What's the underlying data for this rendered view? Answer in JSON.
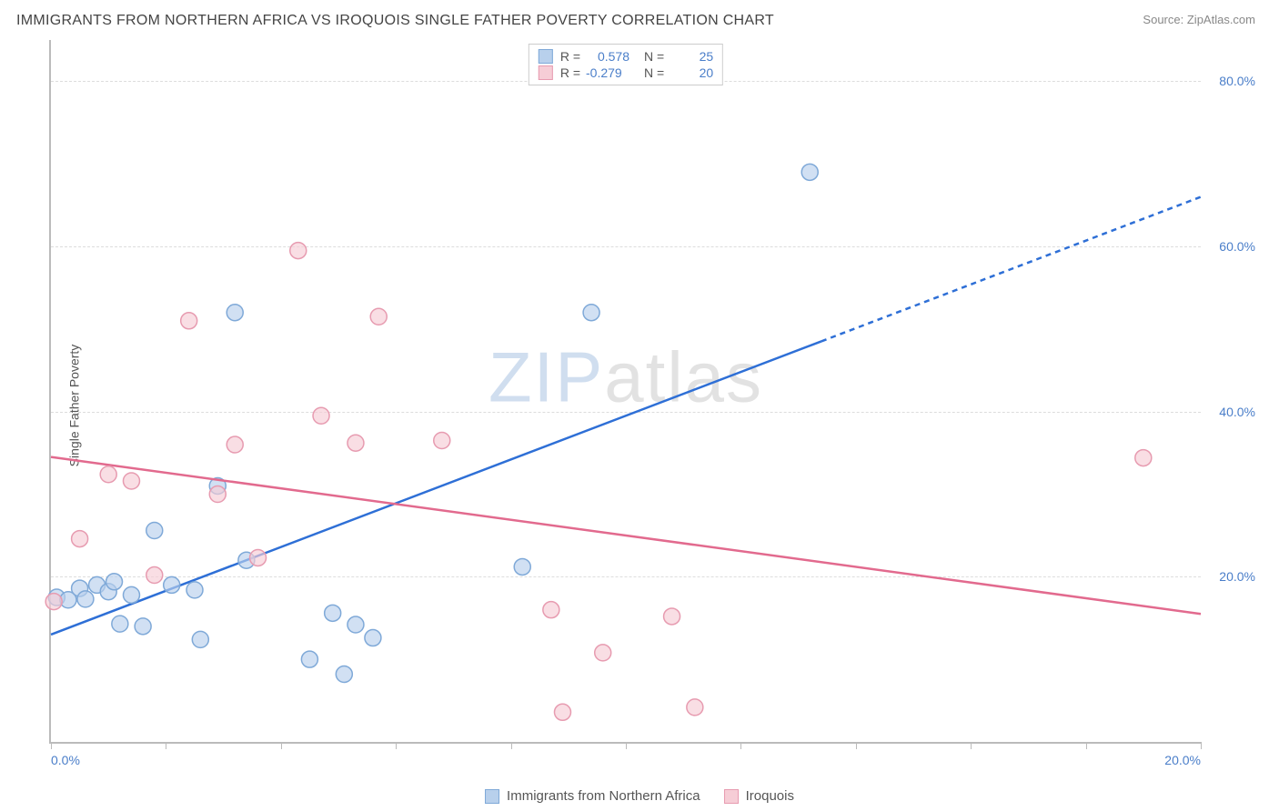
{
  "title": "IMMIGRANTS FROM NORTHERN AFRICA VS IROQUOIS SINGLE FATHER POVERTY CORRELATION CHART",
  "source_label": "Source:",
  "source_name": "ZipAtlas.com",
  "ylabel": "Single Father Poverty",
  "watermark": {
    "a": "ZIP",
    "b": "atlas"
  },
  "chart": {
    "type": "scatter",
    "background_color": "#ffffff",
    "grid_color": "#dddddd",
    "axis_color": "#bbbbbb",
    "tick_label_color": "#4a7ec9",
    "xlim": [
      0,
      20
    ],
    "ylim": [
      0,
      85
    ],
    "xticks": [
      0,
      2,
      4,
      6,
      8,
      10,
      12,
      14,
      16,
      18,
      20
    ],
    "xtick_labels": {
      "0": "0.0%",
      "20": "20.0%"
    },
    "yticks": [
      20,
      40,
      60,
      80
    ],
    "ytick_labels": [
      "20.0%",
      "40.0%",
      "60.0%",
      "80.0%"
    ],
    "marker_radius": 9,
    "marker_stroke_width": 1.5,
    "trend_line_width": 2.5,
    "series": [
      {
        "name": "Immigrants from Northern Africa",
        "fill": "#b8d0ec",
        "stroke": "#7fa9d8",
        "R": "0.578",
        "N": "25",
        "points": [
          [
            0.1,
            17.5
          ],
          [
            0.3,
            17.2
          ],
          [
            0.5,
            18.6
          ],
          [
            0.6,
            17.3
          ],
          [
            0.8,
            19.0
          ],
          [
            1.0,
            18.2
          ],
          [
            1.1,
            19.4
          ],
          [
            1.2,
            14.3
          ],
          [
            1.4,
            17.8
          ],
          [
            1.6,
            14.0
          ],
          [
            1.8,
            25.6
          ],
          [
            2.1,
            19.0
          ],
          [
            2.5,
            18.4
          ],
          [
            2.6,
            12.4
          ],
          [
            2.9,
            31.0
          ],
          [
            3.2,
            52.0
          ],
          [
            3.4,
            22.0
          ],
          [
            4.5,
            10.0
          ],
          [
            4.9,
            15.6
          ],
          [
            5.1,
            8.2
          ],
          [
            5.3,
            14.2
          ],
          [
            5.6,
            12.6
          ],
          [
            8.2,
            21.2
          ],
          [
            9.4,
            52.0
          ],
          [
            13.2,
            69.0
          ]
        ],
        "trend": {
          "x1": 0,
          "y1": 13.0,
          "x2": 20,
          "y2": 66.0,
          "solid_until_x": 13.4
        }
      },
      {
        "name": "Iroquois",
        "fill": "#f6cdd6",
        "stroke": "#e79bb0",
        "R": "-0.279",
        "N": "20",
        "points": [
          [
            0.05,
            17.0
          ],
          [
            0.5,
            24.6
          ],
          [
            1.0,
            32.4
          ],
          [
            1.4,
            31.6
          ],
          [
            1.8,
            20.2
          ],
          [
            2.4,
            51.0
          ],
          [
            2.9,
            30.0
          ],
          [
            3.2,
            36.0
          ],
          [
            3.6,
            22.3
          ],
          [
            4.3,
            59.5
          ],
          [
            4.7,
            39.5
          ],
          [
            5.3,
            36.2
          ],
          [
            5.7,
            51.5
          ],
          [
            6.8,
            36.5
          ],
          [
            8.7,
            16.0
          ],
          [
            8.9,
            3.6
          ],
          [
            9.6,
            10.8
          ],
          [
            10.8,
            15.2
          ],
          [
            11.2,
            4.2
          ],
          [
            19.0,
            34.4
          ]
        ],
        "trend": {
          "x1": 0,
          "y1": 34.5,
          "x2": 20,
          "y2": 15.5,
          "solid_until_x": 20
        }
      }
    ]
  },
  "stats_legend": {
    "r_label": "R =",
    "n_label": "N ="
  },
  "bottom_legend_items": [
    {
      "label": "Immigrants from Northern Africa",
      "fill": "#b8d0ec",
      "stroke": "#7fa9d8"
    },
    {
      "label": "Iroquois",
      "fill": "#f6cdd6",
      "stroke": "#e79bb0"
    }
  ]
}
